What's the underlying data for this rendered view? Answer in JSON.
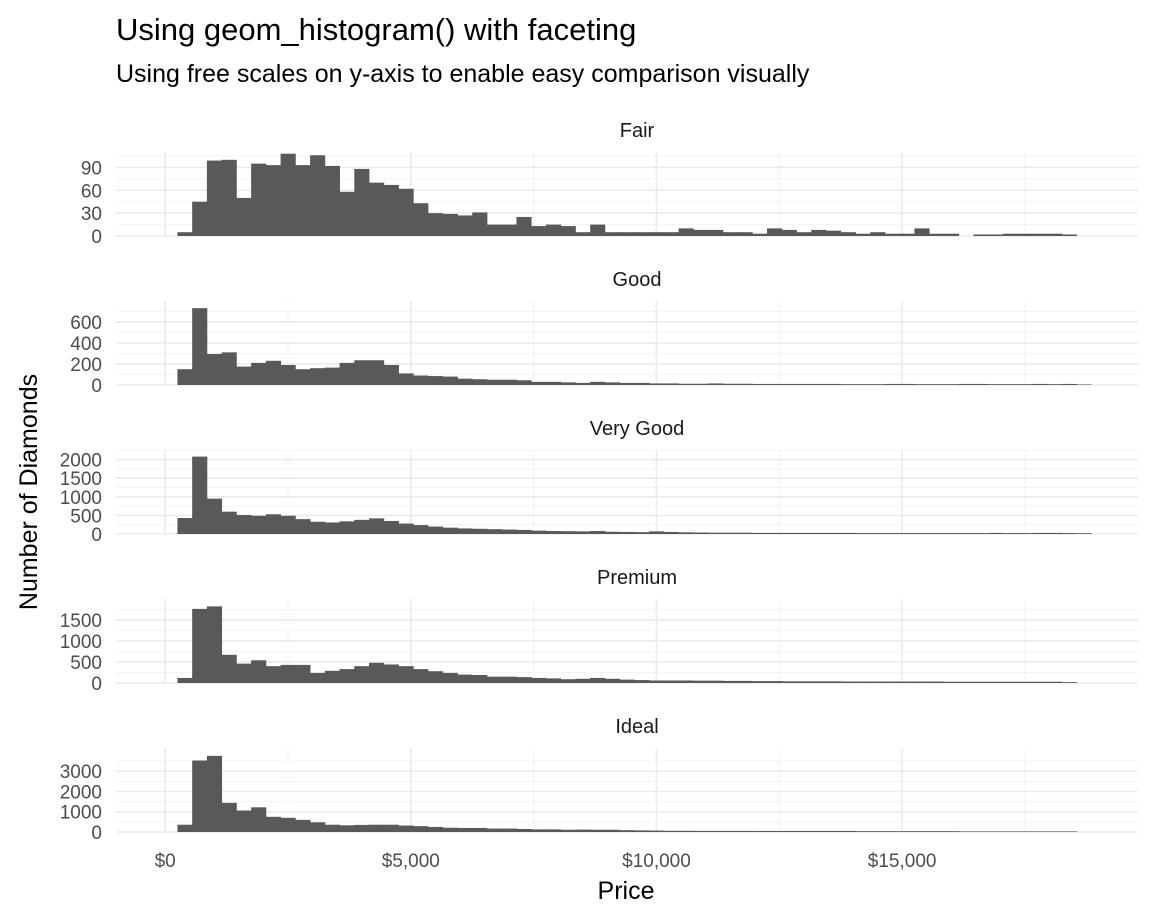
{
  "title": "Using geom_histogram() with faceting",
  "subtitle": "Using free scales on y-axis to enable easy comparison visually",
  "chart_data": {
    "type": "bar",
    "subtype": "faceted histogram",
    "xlabel": "Price",
    "ylabel": "Number of Diamonds",
    "xlim": [
      -1000,
      19800
    ],
    "x_ticks": [
      0,
      5000,
      10000,
      15000
    ],
    "x_tick_labels": [
      "$0",
      "$5,000",
      "$10,000",
      "$15,000"
    ],
    "bin_centers": [
      326,
      948,
      1570,
      2192,
      2814,
      3436,
      4058,
      4680,
      5302,
      5924,
      6546,
      7168,
      7790,
      8412,
      9034,
      9656,
      10278,
      10900,
      11522,
      12144,
      12766,
      13388,
      14010,
      14632,
      15254,
      15876,
      16498,
      17120,
      17742,
      18364,
      18986
    ],
    "bar_color": "#595959",
    "grid": true,
    "facet_scales": "free_y",
    "facets": [
      {
        "label": "Fair",
        "ylim": [
          0,
          105
        ],
        "y_ticks": [
          0,
          30,
          60,
          90
        ],
        "x": [
          400,
          700,
          1000,
          1300,
          1600,
          1900,
          2200,
          2500,
          2800,
          3100,
          3400,
          3700,
          4000,
          4300,
          4600,
          4900,
          5200,
          5500,
          5800,
          6100,
          6400,
          6700,
          7000,
          7300,
          7600,
          7900,
          8200,
          8500,
          8800,
          9100,
          9400,
          9700,
          10000,
          10300,
          10600,
          10900,
          11200,
          11500,
          11800,
          12100,
          12400,
          12700,
          13000,
          13300,
          13600,
          13900,
          14200,
          14500,
          14800,
          15100,
          15400,
          15700,
          16000,
          16300,
          16600,
          16900,
          17200,
          17500,
          17800,
          18100,
          18400
        ],
        "values": [
          5,
          45,
          99,
          100,
          50,
          95,
          93,
          108,
          93,
          106,
          92,
          58,
          88,
          70,
          67,
          62,
          43,
          30,
          29,
          27,
          31,
          15,
          15,
          25,
          13,
          15,
          13,
          5,
          15,
          5,
          5,
          5,
          5,
          5,
          10,
          8,
          8,
          5,
          5,
          3,
          10,
          8,
          5,
          8,
          7,
          5,
          3,
          5,
          3,
          3,
          10,
          3,
          3,
          0,
          2,
          2,
          3,
          3,
          3,
          3,
          2
        ]
      },
      {
        "label": "Good",
        "ylim": [
          0,
          760
        ],
        "y_ticks": [
          0,
          200,
          400,
          600
        ],
        "x": [
          400,
          700,
          1000,
          1300,
          1600,
          1900,
          2200,
          2500,
          2800,
          3100,
          3400,
          3700,
          4000,
          4300,
          4600,
          4900,
          5200,
          5500,
          5800,
          6100,
          6400,
          6700,
          7000,
          7300,
          7600,
          7900,
          8200,
          8500,
          8800,
          9100,
          9400,
          9700,
          10000,
          10300,
          10600,
          10900,
          11200,
          11500,
          11800,
          12100,
          12400,
          12700,
          13000,
          13300,
          13600,
          13900,
          14200,
          14500,
          14800,
          15100,
          15400,
          15700,
          16000,
          16300,
          16600,
          16900,
          17200,
          17500,
          17800,
          18100,
          18400,
          18700
        ],
        "values": [
          150,
          730,
          295,
          310,
          175,
          210,
          230,
          190,
          150,
          160,
          165,
          210,
          235,
          235,
          190,
          110,
          90,
          85,
          80,
          60,
          55,
          50,
          50,
          45,
          30,
          30,
          25,
          20,
          30,
          25,
          20,
          20,
          15,
          15,
          12,
          12,
          15,
          12,
          12,
          10,
          10,
          10,
          10,
          10,
          10,
          8,
          8,
          8,
          10,
          10,
          8,
          8,
          8,
          10,
          10,
          8,
          8,
          8,
          10,
          8,
          10,
          5
        ]
      },
      {
        "label": "Very Good",
        "ylim": [
          0,
          2150
        ],
        "y_ticks": [
          0,
          500,
          1000,
          1500,
          2000
        ],
        "y_tick_labels": [
          "0",
          "500",
          "1000",
          "1500",
          "2000"
        ],
        "x": [
          400,
          700,
          1000,
          1300,
          1600,
          1900,
          2200,
          2500,
          2800,
          3100,
          3400,
          3700,
          4000,
          4300,
          4600,
          4900,
          5200,
          5500,
          5800,
          6100,
          6400,
          6700,
          7000,
          7300,
          7600,
          7900,
          8200,
          8500,
          8800,
          9100,
          9400,
          9700,
          10000,
          10300,
          10600,
          10900,
          11200,
          11500,
          11800,
          12100,
          12400,
          12700,
          13000,
          13300,
          13600,
          13900,
          14200,
          14500,
          14800,
          15100,
          15400,
          15700,
          16000,
          16300,
          16600,
          16900,
          17200,
          17500,
          17800,
          18100,
          18400,
          18700
        ],
        "values": [
          430,
          2080,
          950,
          600,
          510,
          490,
          530,
          490,
          400,
          330,
          310,
          340,
          380,
          420,
          350,
          280,
          240,
          200,
          170,
          150,
          140,
          130,
          120,
          110,
          90,
          80,
          75,
          70,
          80,
          60,
          55,
          50,
          70,
          55,
          45,
          40,
          35,
          35,
          35,
          30,
          30,
          30,
          30,
          30,
          30,
          30,
          25,
          25,
          25,
          25,
          25,
          25,
          25,
          25,
          25,
          30,
          25,
          25,
          30,
          30,
          25,
          20
        ]
      },
      {
        "label": "Premium",
        "ylim": [
          0,
          1900
        ],
        "y_ticks": [
          0,
          500,
          1000,
          1500
        ],
        "y_tick_labels": [
          "0",
          "500",
          "1000",
          "1500"
        ],
        "x": [
          400,
          700,
          1000,
          1300,
          1600,
          1900,
          2200,
          2500,
          2800,
          3100,
          3400,
          3700,
          4000,
          4300,
          4600,
          4900,
          5200,
          5500,
          5800,
          6100,
          6400,
          6700,
          7000,
          7300,
          7600,
          7900,
          8200,
          8500,
          8800,
          9100,
          9400,
          9700,
          10000,
          10300,
          10600,
          10900,
          11200,
          11500,
          11800,
          12100,
          12400,
          12700,
          13000,
          13300,
          13600,
          13900,
          14200,
          14500,
          14800,
          15100,
          15400,
          15700,
          16000,
          16300,
          16600,
          16900,
          17200,
          17500,
          17800,
          18100,
          18400
        ],
        "values": [
          120,
          1760,
          1820,
          670,
          460,
          540,
          400,
          430,
          430,
          240,
          290,
          330,
          400,
          480,
          440,
          400,
          330,
          280,
          240,
          200,
          190,
          150,
          150,
          140,
          120,
          110,
          90,
          100,
          120,
          100,
          80,
          70,
          60,
          60,
          60,
          55,
          55,
          50,
          50,
          45,
          45,
          40,
          40,
          40,
          40,
          35,
          35,
          35,
          35,
          35,
          35,
          35,
          30,
          30,
          30,
          30,
          30,
          30,
          30,
          30,
          20
        ]
      },
      {
        "label": "Ideal",
        "ylim": [
          0,
          3950
        ],
        "y_ticks": [
          0,
          1000,
          2000,
          3000
        ],
        "y_tick_labels": [
          "0",
          "1000",
          "2000",
          "3000"
        ],
        "x": [
          400,
          700,
          1000,
          1300,
          1600,
          1900,
          2200,
          2500,
          2800,
          3100,
          3400,
          3700,
          4000,
          4300,
          4600,
          4900,
          5200,
          5500,
          5800,
          6100,
          6400,
          6700,
          7000,
          7300,
          7600,
          7900,
          8200,
          8500,
          8800,
          9100,
          9400,
          9700,
          10000,
          10300,
          10600,
          10900,
          11200,
          11500,
          11800,
          12100,
          12400,
          12700,
          13000,
          13300,
          13600,
          13900,
          14200,
          14500,
          14800,
          15100,
          15400,
          15700,
          16000,
          16300,
          16600,
          16900,
          17200,
          17500,
          17800,
          18100,
          18400
        ],
        "values": [
          360,
          3530,
          3760,
          1440,
          1060,
          1220,
          750,
          700,
          600,
          480,
          360,
          330,
          350,
          360,
          360,
          320,
          290,
          250,
          210,
          200,
          200,
          170,
          170,
          150,
          130,
          130,
          110,
          120,
          110,
          110,
          90,
          80,
          70,
          60,
          60,
          55,
          55,
          55,
          55,
          50,
          50,
          50,
          50,
          50,
          50,
          50,
          40,
          40,
          40,
          40,
          40,
          40,
          40,
          30,
          30,
          30,
          30,
          30,
          30,
          30,
          30
        ]
      }
    ]
  }
}
